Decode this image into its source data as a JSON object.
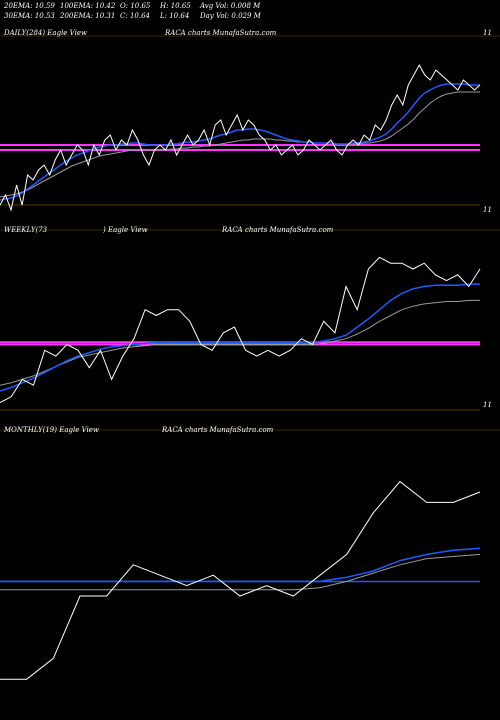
{
  "stats": {
    "ema20": "20EMA: 10.59",
    "ema100": "100EMA: 10.42",
    "open": "O: 10.65",
    "high": "H: 10.65",
    "avg_vol": "Avg Vol: 0.008 M",
    "ema30": "30EMA: 10.53",
    "ema200": "200EMA: 10.31",
    "close": "C: 10.64",
    "low": "L: 10.64",
    "day_vol": "Day Vol: 0.029 M"
  },
  "colors": {
    "background": "#000000",
    "price": "#ffffff",
    "ema_blue": "#1e5bff",
    "ema_gray": "#9a9a9a",
    "ref_line": "#ff33ff",
    "grid": "#3a2a00"
  },
  "chart_data": [
    {
      "type": "line",
      "label_left": "DAILY(284) Eagle  View",
      "label_right": "RACA charts MunafaSutra.com",
      "tick_top": "11",
      "tick_bottom": "11",
      "price": [
        9.9,
        10.0,
        9.85,
        10.1,
        9.9,
        10.2,
        10.15,
        10.25,
        10.3,
        10.2,
        10.35,
        10.45,
        10.3,
        10.4,
        10.5,
        10.45,
        10.3,
        10.5,
        10.4,
        10.55,
        10.6,
        10.45,
        10.55,
        10.5,
        10.65,
        10.55,
        10.4,
        10.3,
        10.45,
        10.5,
        10.45,
        10.55,
        10.4,
        10.5,
        10.6,
        10.5,
        10.55,
        10.65,
        10.5,
        10.7,
        10.75,
        10.6,
        10.7,
        10.8,
        10.65,
        10.75,
        10.7,
        10.6,
        10.55,
        10.45,
        10.5,
        10.4,
        10.45,
        10.5,
        10.4,
        10.45,
        10.55,
        10.5,
        10.45,
        10.5,
        10.55,
        10.45,
        10.4,
        10.5,
        10.55,
        10.5,
        10.6,
        10.55,
        10.7,
        10.65,
        10.75,
        10.9,
        11.0,
        10.9,
        11.1,
        11.2,
        11.3,
        11.2,
        11.15,
        11.25,
        11.2,
        11.15,
        11.1,
        11.05,
        11.15,
        11.1,
        11.05,
        11.1
      ],
      "ema_blue": [
        9.95,
        9.96,
        9.97,
        9.99,
        10.02,
        10.06,
        10.1,
        10.14,
        10.18,
        10.22,
        10.26,
        10.3,
        10.34,
        10.37,
        10.4,
        10.42,
        10.44,
        10.46,
        10.48,
        10.49,
        10.5,
        10.5,
        10.51,
        10.51,
        10.52,
        10.52,
        10.51,
        10.5,
        10.5,
        10.5,
        10.5,
        10.51,
        10.51,
        10.52,
        10.53,
        10.53,
        10.54,
        10.55,
        10.56,
        10.58,
        10.6,
        10.61,
        10.63,
        10.65,
        10.65,
        10.66,
        10.66,
        10.65,
        10.64,
        10.62,
        10.6,
        10.58,
        10.56,
        10.55,
        10.54,
        10.53,
        10.53,
        10.52,
        10.52,
        10.52,
        10.52,
        10.51,
        10.51,
        10.51,
        10.52,
        10.52,
        10.53,
        10.54,
        10.56,
        10.58,
        10.61,
        10.66,
        10.72,
        10.77,
        10.83,
        10.9,
        10.97,
        11.02,
        11.05,
        11.08,
        11.1,
        11.11,
        11.11,
        11.11,
        11.11,
        11.1,
        11.1,
        11.1
      ],
      "ema_gray": [
        9.98,
        9.99,
        10.0,
        10.01,
        10.03,
        10.05,
        10.08,
        10.11,
        10.14,
        10.17,
        10.2,
        10.23,
        10.26,
        10.29,
        10.31,
        10.33,
        10.35,
        10.37,
        10.39,
        10.4,
        10.41,
        10.42,
        10.43,
        10.44,
        10.45,
        10.45,
        10.45,
        10.45,
        10.45,
        10.45,
        10.45,
        10.46,
        10.46,
        10.47,
        10.47,
        10.48,
        10.48,
        10.49,
        10.49,
        10.5,
        10.51,
        10.52,
        10.53,
        10.54,
        10.55,
        10.55,
        10.56,
        10.56,
        10.56,
        10.56,
        10.55,
        10.55,
        10.54,
        10.54,
        10.53,
        10.53,
        10.53,
        10.52,
        10.52,
        10.52,
        10.52,
        10.51,
        10.51,
        10.51,
        10.51,
        10.51,
        10.52,
        10.52,
        10.53,
        10.54,
        10.56,
        10.59,
        10.63,
        10.67,
        10.71,
        10.76,
        10.82,
        10.87,
        10.92,
        10.96,
        10.99,
        11.01,
        11.02,
        11.03,
        11.03,
        11.03,
        11.03,
        11.03
      ],
      "ref_magenta": [
        10.5,
        10.45
      ],
      "ylim": [
        9.75,
        11.55
      ]
    },
    {
      "type": "line",
      "label_left": "WEEKLY(73",
      "label_mid": ") Eagle   View",
      "label_right": "RACA charts MunafaSutra.com",
      "tick_bottom": "11",
      "price": [
        9.9,
        9.95,
        10.1,
        10.05,
        10.35,
        10.3,
        10.4,
        10.35,
        10.2,
        10.35,
        10.1,
        10.3,
        10.45,
        10.7,
        10.65,
        10.7,
        10.7,
        10.6,
        10.4,
        10.35,
        10.5,
        10.55,
        10.35,
        10.3,
        10.35,
        10.3,
        10.35,
        10.45,
        10.4,
        10.6,
        10.5,
        10.9,
        10.7,
        11.05,
        11.15,
        11.1,
        11.1,
        11.05,
        11.1,
        11.0,
        10.95,
        11.0,
        10.9,
        11.05
      ],
      "ema_blue": [
        10.0,
        10.03,
        10.07,
        10.11,
        10.16,
        10.21,
        10.26,
        10.3,
        10.33,
        10.36,
        10.38,
        10.39,
        10.4,
        10.41,
        10.42,
        10.42,
        10.42,
        10.42,
        10.42,
        10.42,
        10.42,
        10.42,
        10.42,
        10.42,
        10.42,
        10.42,
        10.42,
        10.42,
        10.42,
        10.43,
        10.45,
        10.48,
        10.55,
        10.62,
        10.7,
        10.78,
        10.84,
        10.88,
        10.9,
        10.91,
        10.91,
        10.91,
        10.92,
        10.92
      ],
      "ema_gray": [
        10.05,
        10.07,
        10.1,
        10.13,
        10.17,
        10.21,
        10.25,
        10.29,
        10.31,
        10.33,
        10.35,
        10.37,
        10.38,
        10.39,
        10.4,
        10.4,
        10.4,
        10.4,
        10.4,
        10.4,
        10.4,
        10.4,
        10.4,
        10.4,
        10.4,
        10.4,
        10.4,
        10.4,
        10.4,
        10.41,
        10.43,
        10.45,
        10.49,
        10.54,
        10.6,
        10.65,
        10.7,
        10.73,
        10.75,
        10.76,
        10.77,
        10.77,
        10.78,
        10.78
      ],
      "ref_magenta": [
        10.42,
        10.4
      ],
      "ylim": [
        9.75,
        11.3
      ]
    },
    {
      "type": "line",
      "label_left": "MONTHLY(19) Eagle   View",
      "label_right": "RACA charts MunafaSutra.com",
      "price": [
        9.95,
        9.95,
        10.05,
        10.35,
        10.35,
        10.5,
        10.45,
        10.4,
        10.45,
        10.35,
        10.4,
        10.35,
        10.45,
        10.55,
        10.75,
        10.9,
        10.8,
        10.8,
        10.85
      ],
      "ema_blue": [
        10.42,
        10.42,
        10.42,
        10.42,
        10.42,
        10.42,
        10.42,
        10.42,
        10.42,
        10.42,
        10.42,
        10.42,
        10.42,
        10.44,
        10.47,
        10.52,
        10.55,
        10.57,
        10.58
      ],
      "ema_gray": [
        10.38,
        10.38,
        10.38,
        10.38,
        10.38,
        10.38,
        10.38,
        10.38,
        10.38,
        10.38,
        10.38,
        10.38,
        10.39,
        10.42,
        10.46,
        10.5,
        10.53,
        10.54,
        10.55
      ],
      "ylim": [
        9.85,
        11.1
      ]
    }
  ]
}
